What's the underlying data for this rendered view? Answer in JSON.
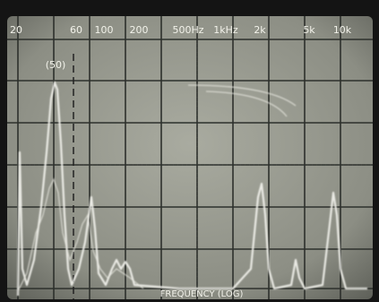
{
  "screen": {
    "frequency_labels": [
      "20",
      "60",
      "100",
      "200",
      "500Hz",
      "1kHz",
      "2k",
      "5k",
      "10k"
    ],
    "marker_label": "(50)",
    "axis_label": "FREQUENCY (LOG)"
  }
}
